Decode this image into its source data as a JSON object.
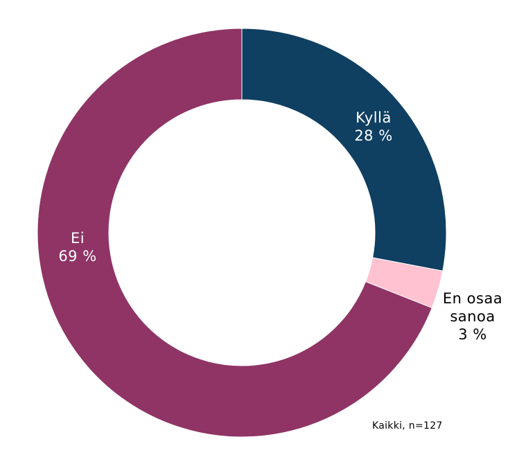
{
  "chart_data": {
    "type": "pie",
    "donut": true,
    "title": "",
    "slices": [
      {
        "label": "Kyllä",
        "value": 28,
        "value_label": "28 %",
        "color": "#0f3f61",
        "label_color": "#ffffff",
        "label_lines": [
          "Kyllä",
          "28 %"
        ]
      },
      {
        "label": "En osaa sanoa",
        "value": 3,
        "value_label": "3 %",
        "color": "#ffc2d1",
        "label_color": "#000000",
        "label_lines": [
          "En osaa",
          "sanoa",
          "3 %"
        ]
      },
      {
        "label": "Ei",
        "value": 69,
        "value_label": "69 %",
        "color": "#8f3465",
        "label_color": "#ffffff",
        "label_lines": [
          "Ei",
          "69 %"
        ]
      }
    ],
    "start_angle_deg": 0,
    "direction": "clockwise",
    "legend": "none"
  },
  "footnote": "Kaikki, n=127"
}
